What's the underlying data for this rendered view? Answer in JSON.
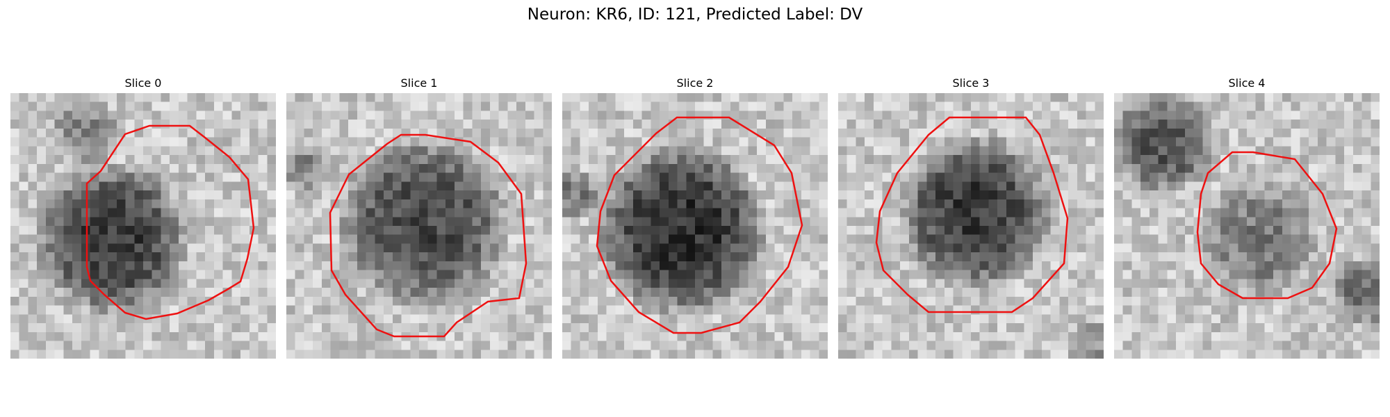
{
  "figure": {
    "title": "Neuron: KR6, ID: 121, Predicted Label: DV",
    "contour_color": "#ee1111",
    "colormap": "gray"
  },
  "slices": [
    {
      "title": "Slice 0"
    },
    {
      "title": "Slice 1"
    },
    {
      "title": "Slice 2"
    },
    {
      "title": "Slice 3"
    },
    {
      "title": "Slice 4"
    }
  ]
}
